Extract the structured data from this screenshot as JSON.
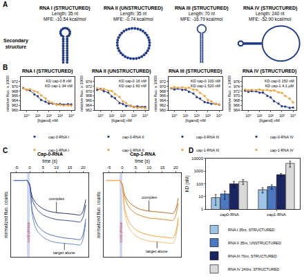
{
  "structures": {
    "panel": "A",
    "row_label": "Secondary structure",
    "items": [
      {
        "title": "RNA I (STRUCTURED)",
        "structured": true,
        "length": {
          "value": 35,
          "label": "Length: 35 nt"
        },
        "mfe": "MFE: -10.54 kcal/mol"
      },
      {
        "title": "RNA II (UNSTRUCTURED)",
        "structured": false,
        "length": {
          "value": 35,
          "label": "Length: 35 nt"
        },
        "mfe": "MFE: -0.74 kcal/mol"
      },
      {
        "title": "RNA III (STRUCTURED)",
        "structured": true,
        "length": {
          "value": 70,
          "label": "Length: 70 nt"
        },
        "mfe": "MFE: -16.79 kcal/mol"
      },
      {
        "title": "RNA IV (STRUCTURED)",
        "structured": true,
        "length": {
          "value": 240,
          "label": "Length: 240 nt"
        },
        "mfe": "MFE: -52.90 kcal/mol"
      }
    ]
  },
  "chart_data": [
    {
      "panel": "B",
      "type": "line",
      "title": "RNA I (STRUCTURED)",
      "x_label": "[ligand] nM",
      "y_label": "relative fluo. x 1000",
      "log": "x",
      "x": [
        0.5,
        1,
        2,
        5,
        10,
        20,
        50,
        100,
        200,
        500,
        1000,
        2000,
        5000,
        10000
      ],
      "xlim": [
        0.3,
        20000
      ],
      "xticks": [
        {
          "value": 1,
          "label": "10⁰"
        },
        {
          "value": 10,
          "label": "10¹"
        },
        {
          "value": 100,
          "label": "10²"
        },
        {
          "value": 1000,
          "label": "10³"
        },
        {
          "value": 10000,
          "label": "10⁴"
        }
      ],
      "ylim": [
        960,
        974
      ],
      "yticks": [
        960,
        962,
        964,
        966,
        968,
        970,
        972
      ],
      "legend": "bottom",
      "annotations": [
        "KD cap-0 8 nM",
        "KD cap-1 34 nM"
      ],
      "series": [
        {
          "name": "cap-0-RNA I",
          "color": "#26398c",
          "values": [
            969.3,
            968.5,
            968.3,
            966.6,
            965.9,
            964.3,
            963.6,
            962.8,
            962.9,
            962.5,
            962.7,
            962.4,
            962.6,
            962.5
          ],
          "fit": [
            969.09,
            968.72,
            968.1,
            966.81,
            965.61,
            964.5,
            963.47,
            963.02,
            962.77,
            962.61,
            962.56,
            962.53,
            962.51,
            962.51
          ]
        },
        {
          "name": "cap-1-RNA I",
          "color": "#f2a13a",
          "values": [
            969.1,
            968.6,
            968.8,
            967.9,
            967.6,
            966.2,
            965.0,
            963.6,
            963.2,
            962.3,
            962.3,
            962.0,
            962.1,
            961.9
          ],
          "fit": [
            968.9,
            968.8,
            968.61,
            968.1,
            967.41,
            966.41,
            964.84,
            963.78,
            963.02,
            962.45,
            962.23,
            962.12,
            962.05,
            962.02
          ]
        }
      ]
    },
    {
      "panel": "B",
      "type": "line",
      "title": "RNA II (UNSTRUCTURED)",
      "x_label": "[ligand] nM",
      "y_label": "relative fluo. x 1000",
      "log": "x",
      "x": [
        0.5,
        1,
        2,
        5,
        10,
        20,
        50,
        100,
        200,
        500,
        1000,
        2000,
        5000,
        10000
      ],
      "xlim": [
        0.3,
        20000
      ],
      "xticks": [
        {
          "value": 1,
          "label": "10⁰"
        },
        {
          "value": 10,
          "label": "10¹"
        },
        {
          "value": 100,
          "label": "10²"
        },
        {
          "value": 1000,
          "label": "10³"
        },
        {
          "value": 10000,
          "label": "10⁴"
        }
      ],
      "ylim": [
        962,
        976
      ],
      "yticks": [
        962,
        964,
        966,
        968,
        970,
        972,
        974
      ],
      "legend": "bottom",
      "annotations": [
        "KD cap-0 16 nM",
        "KD cap-1 60 nM"
      ],
      "series": [
        {
          "name": "cap-0-RNA II",
          "color": "#26398c",
          "values": [
            970.5,
            970.9,
            969.9,
            969.4,
            967.8,
            967.1,
            965.0,
            964.7,
            963.8,
            963.9,
            963.4,
            963.7,
            963.5,
            963.4
          ],
          "fit": [
            970.78,
            970.56,
            970.17,
            969.22,
            968.11,
            966.83,
            965.32,
            964.54,
            964.06,
            963.73,
            963.62,
            963.56,
            963.52,
            963.51
          ]
        },
        {
          "name": "cap-1-RNA II",
          "color": "#f2a13a",
          "values": [
            971.2,
            970.7,
            970.9,
            970.1,
            970.1,
            968.7,
            967.6,
            965.7,
            965.1,
            963.7,
            963.6,
            963.0,
            963.2,
            962.9
          ],
          "fit": [
            970.94,
            970.87,
            970.74,
            970.38,
            969.86,
            969.0,
            967.36,
            966.0,
            964.85,
            963.86,
            963.46,
            963.23,
            963.09,
            963.05
          ]
        }
      ]
    },
    {
      "panel": "B",
      "type": "line",
      "title": "RNA III (STRUCTURED)",
      "x_label": "[ligand] nM",
      "y_label": "relative fluo. x 1000",
      "log": "x",
      "x": [
        0.5,
        1,
        2,
        5,
        10,
        20,
        50,
        100,
        200,
        500,
        1000,
        2000,
        5000,
        10000
      ],
      "xlim": [
        0.3,
        20000
      ],
      "xticks": [
        {
          "value": 1,
          "label": "10⁰"
        },
        {
          "value": 10,
          "label": "10¹"
        },
        {
          "value": 100,
          "label": "10²"
        },
        {
          "value": 1000,
          "label": "10³"
        },
        {
          "value": 10000,
          "label": "10⁴"
        }
      ],
      "ylim": [
        960,
        974
      ],
      "yticks": [
        960,
        962,
        964,
        966,
        968,
        970,
        972
      ],
      "legend": "bottom",
      "annotations": [
        "KD cap-0 100 nM",
        "KD cap-1 520 nM"
      ],
      "series": [
        {
          "name": "cap-0-RNA III",
          "color": "#26398c",
          "values": [
            969.2,
            968.7,
            969.0,
            968.5,
            968.6,
            967.7,
            967.0,
            965.5,
            964.9,
            963.4,
            963.2,
            962.7,
            962.7,
            962.4
          ],
          "fit": [
            968.97,
            968.94,
            968.87,
            968.69,
            968.41,
            967.91,
            966.84,
            965.75,
            964.67,
            963.59,
            963.09,
            962.81,
            962.63,
            962.56
          ]
        },
        {
          "name": "cap-1-RNA III",
          "color": "#f2a13a",
          "values": [
            969.3,
            969.7,
            969.4,
            969.6,
            969.2,
            969.4,
            968.6,
            968.5,
            967.2,
            966.0,
            964.3,
            963.7,
            962.6,
            962.5
          ],
          "fit": [
            969.49,
            969.49,
            969.47,
            969.43,
            969.36,
            969.22,
            968.84,
            968.29,
            967.42,
            965.83,
            964.57,
            963.55,
            962.71,
            962.37
          ]
        }
      ]
    },
    {
      "panel": "B",
      "type": "line",
      "title": "RNA IV (STRUCTURED)",
      "x_label": "[ligand] nM",
      "y_label": "relative fluo. x 1000",
      "log": "x",
      "x": [
        0.5,
        1,
        2,
        5,
        10,
        20,
        50,
        100,
        200,
        500,
        1000,
        2000,
        5000,
        10000
      ],
      "xlim": [
        0.3,
        20000
      ],
      "xticks": [
        {
          "value": 1,
          "label": "10⁰"
        },
        {
          "value": 10,
          "label": "10¹"
        },
        {
          "value": 100,
          "label": "10²"
        },
        {
          "value": 1000,
          "label": "10³"
        },
        {
          "value": 10000,
          "label": "10⁴"
        }
      ],
      "ylim": [
        964,
        978
      ],
      "yticks": [
        964,
        966,
        968,
        970,
        972,
        974,
        976
      ],
      "legend": "bottom",
      "annotations": [
        "KD cap-0 150 nM",
        "KD cap-1 4.1 µM"
      ],
      "series": [
        {
          "name": "cap-0-RNA IV",
          "color": "#26398c",
          "values": [
            972.2,
            971.7,
            972.0,
            971.9,
            971.3,
            971.4,
            970.0,
            969.4,
            967.8,
            966.8,
            965.7,
            965.6,
            965.0,
            965.2
          ],
          "fit": [
            971.98,
            971.95,
            971.91,
            971.78,
            971.56,
            971.17,
            970.25,
            969.2,
            968.0,
            966.62,
            965.91,
            965.49,
            965.2,
            965.1
          ]
        },
        {
          "name": "cap-1-RNA IV",
          "color": "#f2a13a",
          "values": [
            972.7,
            972.3,
            972.6,
            972.4,
            972.7,
            972.3,
            972.5,
            972.1,
            972.3,
            971.5,
            971.3,
            970.0,
            968.9,
            967.3
          ],
          "fit": [
            972.5,
            972.5,
            972.5,
            972.49,
            972.48,
            972.47,
            972.42,
            972.33,
            972.17,
            971.74,
            971.13,
            970.2,
            968.66,
            967.54
          ]
        }
      ]
    },
    {
      "panel": "C",
      "type": "line",
      "title": "Cap-0-RNA",
      "x_label": "time (s)",
      "y_label": "normalized fluo. counts",
      "x": [
        -6,
        -4,
        -2,
        -1,
        0,
        0.5,
        1,
        2,
        3,
        5,
        7,
        10,
        13,
        16,
        19,
        20,
        21
      ],
      "xlim": [
        -7,
        22
      ],
      "xticks": [
        -5,
        0,
        5,
        10,
        15,
        20
      ],
      "ylim": [
        0,
        1.1
      ],
      "yticks": [],
      "tick_labels": "x",
      "shaded": {
        "label": "cold phase",
        "x": [
          -1,
          0
        ]
      },
      "annotations": [
        {
          "text": "complex",
          "x": 10,
          "y": 0.58
        },
        {
          "text": "target alone",
          "x": 13,
          "y": 0.18
        }
      ],
      "series": [
        {
          "color": "#0d1b4f",
          "values": [
            1,
            1,
            1,
            1,
            0.95,
            0.85,
            0.78,
            0.72,
            0.68,
            0.63,
            0.6,
            0.58,
            0.57,
            0.56,
            0.55,
            0.6,
            0.75
          ]
        },
        {
          "color": "#1f3a8a",
          "values": [
            1,
            1,
            1,
            1,
            0.94,
            0.82,
            0.74,
            0.66,
            0.61,
            0.55,
            0.52,
            0.49,
            0.48,
            0.47,
            0.46,
            0.52,
            0.68
          ]
        },
        {
          "color": "#3b5bb5",
          "values": [
            1,
            1,
            1,
            1,
            0.93,
            0.75,
            0.6,
            0.48,
            0.41,
            0.34,
            0.3,
            0.27,
            0.25,
            0.24,
            0.23,
            0.3,
            0.5
          ]
        },
        {
          "color": "#5a78c8",
          "values": [
            1,
            1,
            1,
            1,
            0.92,
            0.7,
            0.54,
            0.4,
            0.33,
            0.26,
            0.22,
            0.19,
            0.18,
            0.17,
            0.16,
            0.24,
            0.45
          ]
        }
      ]
    },
    {
      "panel": "C",
      "type": "line",
      "title": "Cap-1-RNA",
      "x_label": "time (s)",
      "y_label": "normalized fluo. counts",
      "x": [
        -6,
        -4,
        -2,
        -1,
        0,
        0.5,
        1,
        2,
        3,
        5,
        7,
        10,
        13,
        16,
        19,
        20,
        21
      ],
      "xlim": [
        -7,
        22
      ],
      "xticks": [
        -5,
        0,
        5,
        10,
        15,
        20
      ],
      "ylim": [
        0,
        1.1
      ],
      "yticks": [],
      "tick_labels": "x",
      "shaded": {
        "label": "cold phase",
        "x": [
          -1,
          0
        ]
      },
      "annotations": [
        {
          "text": "complex",
          "x": 10,
          "y": 0.6
        },
        {
          "text": "target alone",
          "x": 13,
          "y": 0.2
        }
      ],
      "series": [
        {
          "color": "#b35a00",
          "values": [
            1,
            1,
            1,
            1,
            0.95,
            0.86,
            0.8,
            0.74,
            0.7,
            0.65,
            0.62,
            0.6,
            0.59,
            0.58,
            0.57,
            0.62,
            0.77
          ]
        },
        {
          "color": "#d97a0f",
          "values": [
            1,
            1,
            1,
            1,
            0.94,
            0.83,
            0.76,
            0.68,
            0.63,
            0.57,
            0.54,
            0.51,
            0.5,
            0.49,
            0.48,
            0.54,
            0.7
          ]
        },
        {
          "color": "#f0952a",
          "values": [
            1,
            1,
            1,
            1,
            0.93,
            0.76,
            0.62,
            0.5,
            0.43,
            0.36,
            0.32,
            0.29,
            0.27,
            0.26,
            0.25,
            0.32,
            0.52
          ]
        },
        {
          "color": "#f7b45a",
          "values": [
            1,
            1,
            1,
            1,
            0.92,
            0.71,
            0.55,
            0.42,
            0.35,
            0.28,
            0.24,
            0.21,
            0.2,
            0.19,
            0.18,
            0.26,
            0.47
          ]
        }
      ]
    },
    {
      "panel": "D",
      "type": "bar",
      "log": "y",
      "y_label": "KD (nM)",
      "categories": [
        "cap0-RNA",
        "cap1-RNA"
      ],
      "ylim": [
        1,
        10000
      ],
      "yticks": [
        1,
        10,
        100,
        1000,
        10000
      ],
      "legend": "bottom",
      "series": [
        {
          "name": "RNA I 35nt, STRUCTURED",
          "color": "#9dc3e6",
          "values": [
            8,
            34
          ],
          "errors": [
            6,
            15
          ]
        },
        {
          "name": "RNA II 35nt, UNSTRUCTURED",
          "color": "#4a78c2",
          "values": [
            16,
            60
          ],
          "errors": [
            10,
            22
          ]
        },
        {
          "name": "RNA III 70nt, STRUCTURED",
          "color": "#1b2563",
          "values": [
            100,
            520
          ],
          "errors": [
            50,
            120
          ]
        },
        {
          "name": "RNA IV 240nt, STRUCTURED",
          "color": "#d9d9d9",
          "values": [
            150,
            4100
          ],
          "errors": [
            60,
            2000
          ]
        }
      ]
    }
  ]
}
